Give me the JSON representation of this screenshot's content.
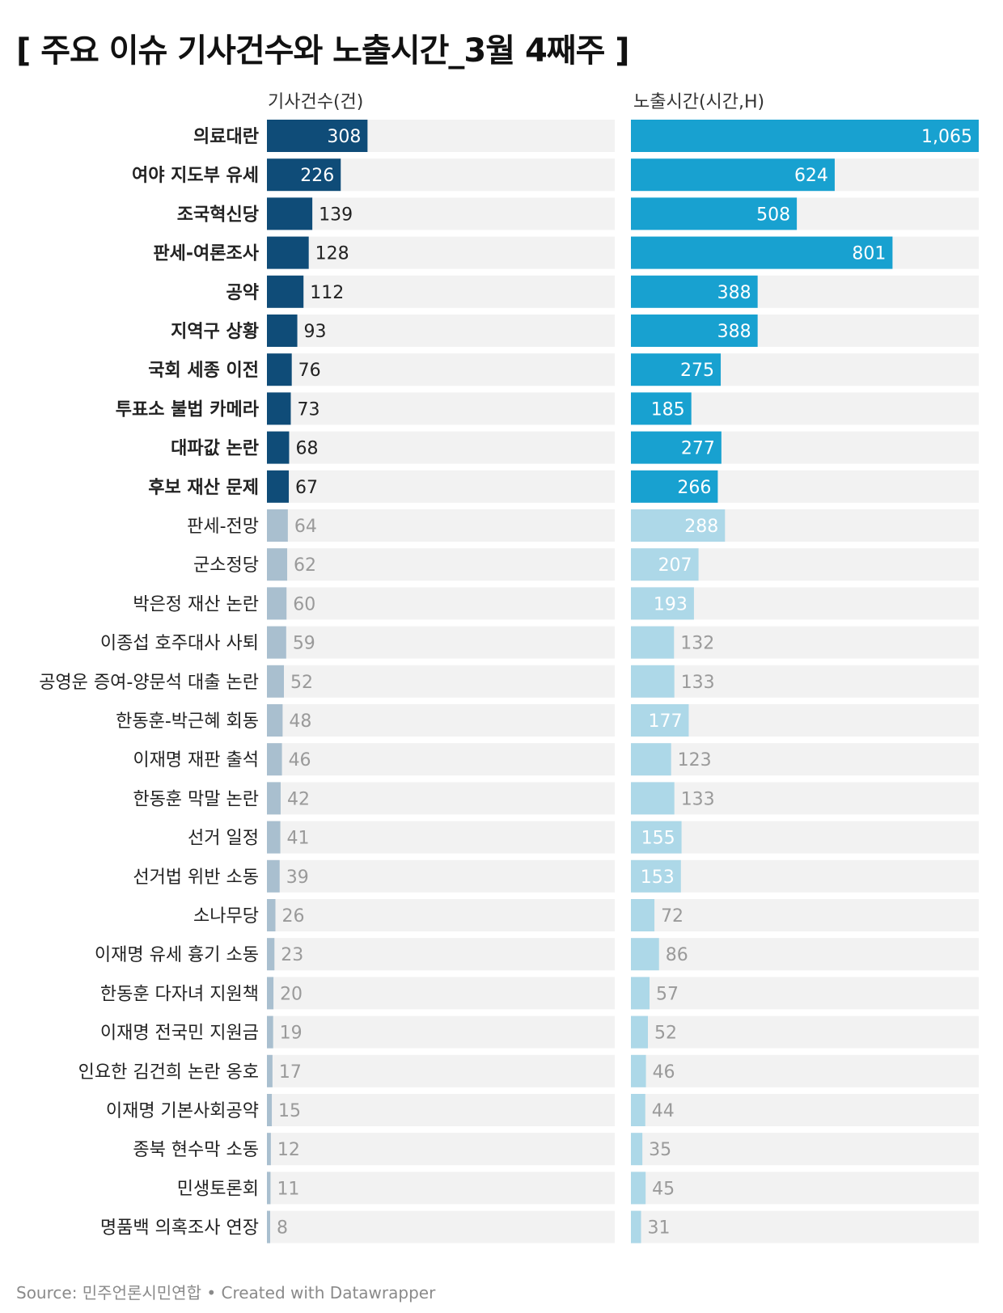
{
  "title": "[ 주요 이슈 기사건수와 노출시간_3월 4째주 ]",
  "columns": {
    "left": "기사건수(건)",
    "right": "노출시간(시간,H)"
  },
  "colors": {
    "left_highlight": "#0f4c78",
    "left_muted": "#a9bfcf",
    "right_highlight": "#18a1d0",
    "right_muted": "#add8e8",
    "track": "#f2f2f2",
    "label_inside": "#ffffff",
    "label_outside_highlight": "#222222",
    "label_outside_muted": "#9a9a9a"
  },
  "chart_data": {
    "type": "bar",
    "orientation": "horizontal",
    "highlighted_count": 10,
    "categories": [
      "의료대란",
      "여야 지도부 유세",
      "조국혁신당",
      "판세-여론조사",
      "공약",
      "지역구 상황",
      "국회 세종 이전",
      "투표소 불법 카메라",
      "대파값 논란",
      "후보 재산 문제",
      "판세-전망",
      "군소정당",
      "박은정 재산 논란",
      "이종섭 호주대사 사퇴",
      "공영운 증여-양문석 대출 논란",
      "한동훈-박근혜 회동",
      "이재명 재판 출석",
      "한동훈 막말 논란",
      "선거 일정",
      "선거법 위반 소동",
      "소나무당",
      "이재명 유세 흉기 소동",
      "한동훈 다자녀 지원책",
      "이재명 전국민 지원금",
      "인요한 김건희 논란 옹호",
      "이재명 기본사회공약",
      "종북 현수막 소동",
      "민생토론회",
      "명품백 의혹조사 연장"
    ],
    "series": [
      {
        "name": "기사건수(건)",
        "values": [
          308,
          226,
          139,
          128,
          112,
          93,
          76,
          73,
          68,
          67,
          64,
          62,
          60,
          59,
          52,
          48,
          46,
          42,
          41,
          39,
          26,
          23,
          20,
          19,
          17,
          15,
          12,
          11,
          8
        ],
        "labels": [
          "308",
          "226",
          "139",
          "128",
          "112",
          "93",
          "76",
          "73",
          "68",
          "67",
          "64",
          "62",
          "60",
          "59",
          "52",
          "48",
          "46",
          "42",
          "41",
          "39",
          "26",
          "23",
          "20",
          "19",
          "17",
          "15",
          "12",
          "11",
          "8"
        ],
        "max": 1065
      },
      {
        "name": "노출시간(시간,H)",
        "values": [
          1065,
          624,
          508,
          801,
          388,
          388,
          275,
          185,
          277,
          266,
          288,
          207,
          193,
          132,
          133,
          177,
          123,
          133,
          155,
          153,
          72,
          86,
          57,
          52,
          46,
          44,
          35,
          45,
          31
        ],
        "labels": [
          "1,065",
          "624",
          "508",
          "801",
          "388",
          "388",
          "275",
          "185",
          "277",
          "266",
          "288",
          "207",
          "193",
          "132",
          "133",
          "177",
          "123",
          "133",
          "155",
          "153",
          "72",
          "86",
          "57",
          "52",
          "46",
          "44",
          "35",
          "45",
          "31"
        ],
        "max": 1065
      }
    ]
  },
  "source": "Source: 민주언론시민연합 • Created with Datawrapper"
}
